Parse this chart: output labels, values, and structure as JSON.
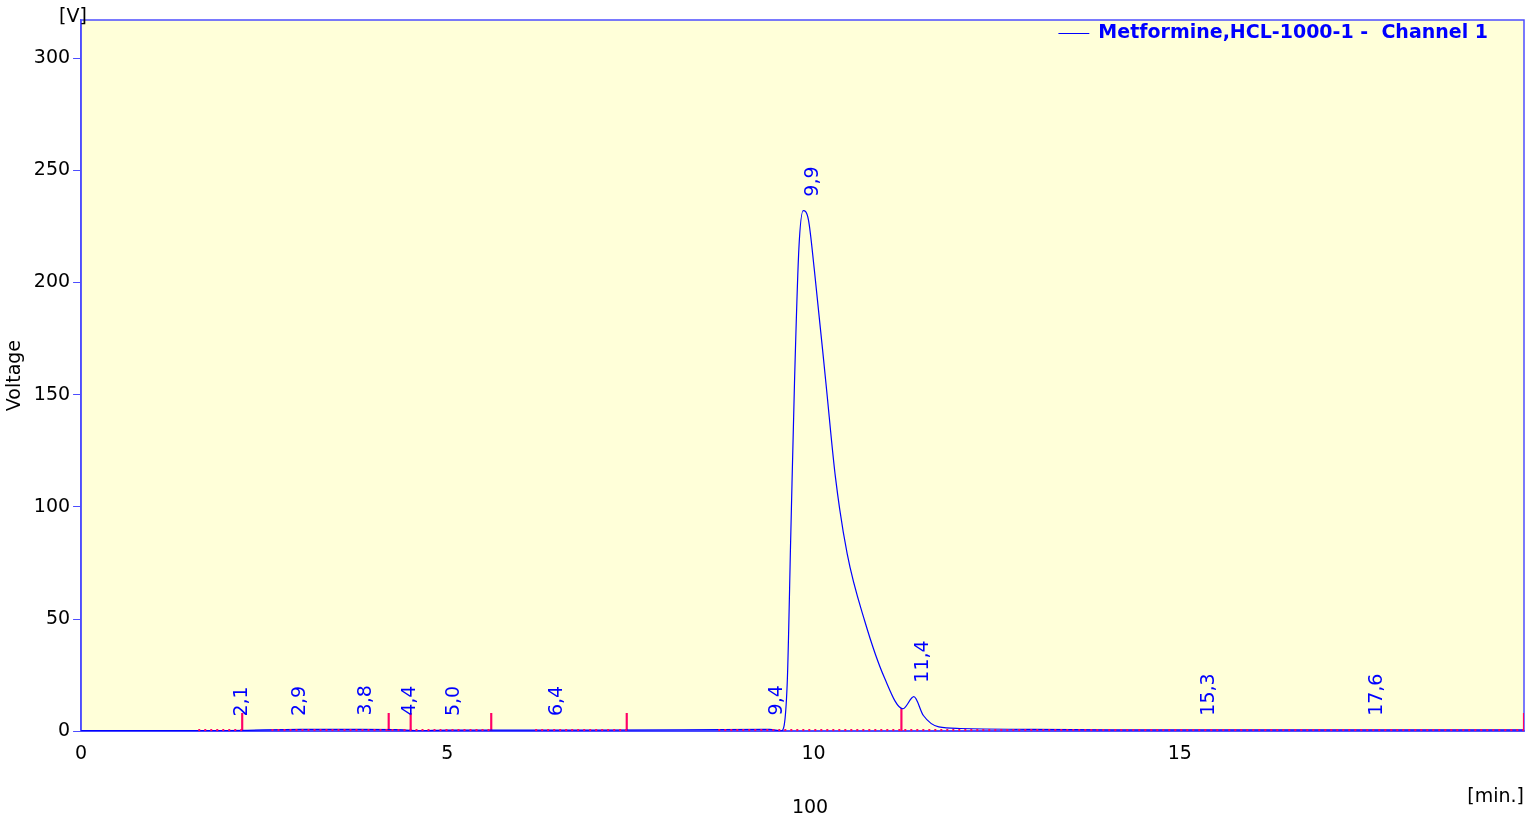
{
  "chart_data": {
    "type": "line",
    "ylabel": "Voltage",
    "xlim": [
      0,
      19.7
    ],
    "ylim": [
      0,
      317
    ],
    "xticks": [
      0,
      5,
      10,
      15
    ],
    "yticks": [
      0,
      50,
      100,
      150,
      200,
      250,
      300
    ],
    "grid": false,
    "legend": "top right",
    "marker": "none",
    "series": [
      {
        "name": "Metformine,HCL-1000-1 -  Channel 1",
        "color": "#0000ff",
        "line_style": "solid",
        "x": [
          0,
          2,
          3,
          3.8,
          4.4,
          4.6,
          5,
          7,
          9.4,
          9.56,
          9.64,
          9.69,
          9.74,
          9.8,
          9.86,
          9.93,
          10.01,
          10.17,
          10.3,
          10.46,
          10.7,
          10.97,
          11.22,
          11.37,
          11.5,
          11.71,
          12,
          13,
          15,
          19.7
        ],
        "values": [
          0.3,
          0.3,
          0.8,
          0.8,
          0.6,
          0.2,
          0.5,
          0.5,
          0.8,
          0.2,
          20.6,
          88,
          155,
          215,
          232,
          228,
          206,
          155,
          113,
          79,
          49,
          23.7,
          10,
          15.4,
          7,
          1.9,
          1.2,
          0.8,
          0.6,
          0.6
        ]
      },
      {
        "type": "line",
        "color": "#ff0066",
        "line_style": "dotted",
        "x": [
          1.6,
          2.2,
          2.4,
          2.6,
          5.6,
          5.9,
          6.2,
          7.45,
          8.1,
          8.7,
          19.7
        ],
        "values": [
          0.4,
          0.4,
          null,
          0.4,
          0.4,
          null,
          0.4,
          0.4,
          null,
          0.4,
          0.4
        ]
      },
      {
        "type": "bar",
        "color": "#ff0066",
        "x": [
          2.2,
          4.2,
          4.5,
          5.6,
          7.45,
          11.2,
          19.7
        ],
        "values": [
          8,
          8,
          8,
          8,
          8,
          10,
          8
        ]
      }
    ],
    "annotations": [
      "[V]",
      "100",
      "[min.]",
      {
        "text": "2,1",
        "x": 2.1,
        "y": 0.3
      },
      {
        "text": "2,9",
        "x": 2.9,
        "y": 0.5
      },
      {
        "text": "3,8",
        "x": 3.8,
        "y": 0.8
      },
      {
        "text": "4,4",
        "x": 4.4,
        "y": 0.6
      },
      {
        "text": "5,0",
        "x": 5.0,
        "y": 0.5
      },
      {
        "text": "6,4",
        "x": 6.4,
        "y": 0.5
      },
      {
        "text": "9,4",
        "x": 9.4,
        "y": 0.8
      },
      {
        "text": "9,9",
        "x": 9.9,
        "y": 232
      },
      {
        "text": "11,4",
        "x": 11.4,
        "y": 15.4
      },
      {
        "text": "15,3",
        "x": 15.3,
        "y": 0.7
      },
      {
        "text": "17,6",
        "x": 17.6,
        "y": 0.6
      }
    ]
  }
}
